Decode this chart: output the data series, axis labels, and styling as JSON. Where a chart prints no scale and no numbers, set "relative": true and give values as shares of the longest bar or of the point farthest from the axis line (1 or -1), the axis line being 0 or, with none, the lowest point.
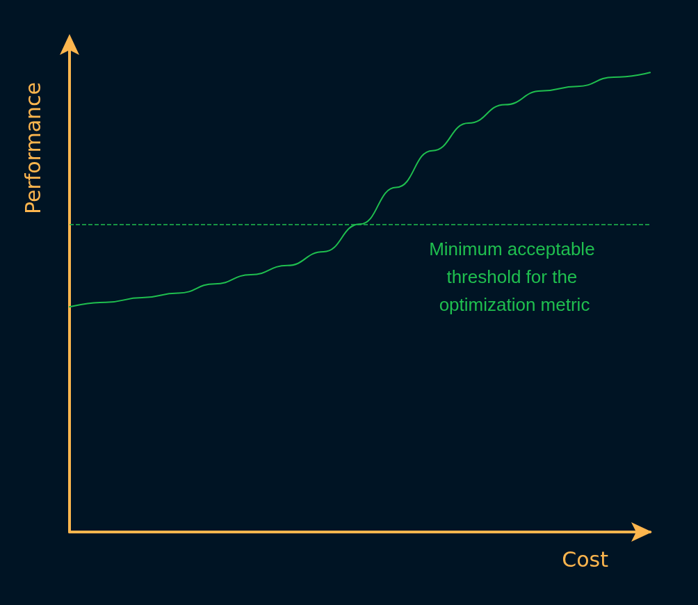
{
  "chart_data": {
    "type": "line",
    "relative": true,
    "xlabel": "Cost",
    "ylabel": "Performance",
    "categories": [
      null,
      null,
      null,
      null,
      null,
      null,
      null,
      null,
      null,
      null,
      null,
      null,
      null,
      null,
      null,
      null,
      null
    ],
    "series": [
      {
        "color": "#1fbf4f",
        "values": [
          0.49,
          0.5,
          0.51,
          0.52,
          0.54,
          0.56,
          0.58,
          0.61,
          0.67,
          0.75,
          0.83,
          0.89,
          0.93,
          0.96,
          0.97,
          0.99,
          1
        ]
      }
    ],
    "ref_lines": [
      {
        "axis": "y",
        "value": 0.67,
        "label": "Minimum acceptable threshold for the optimization metric",
        "color": "#1fbf4f",
        "line_style": "dashed"
      }
    ],
    "marker": "none",
    "grid": false
  }
}
